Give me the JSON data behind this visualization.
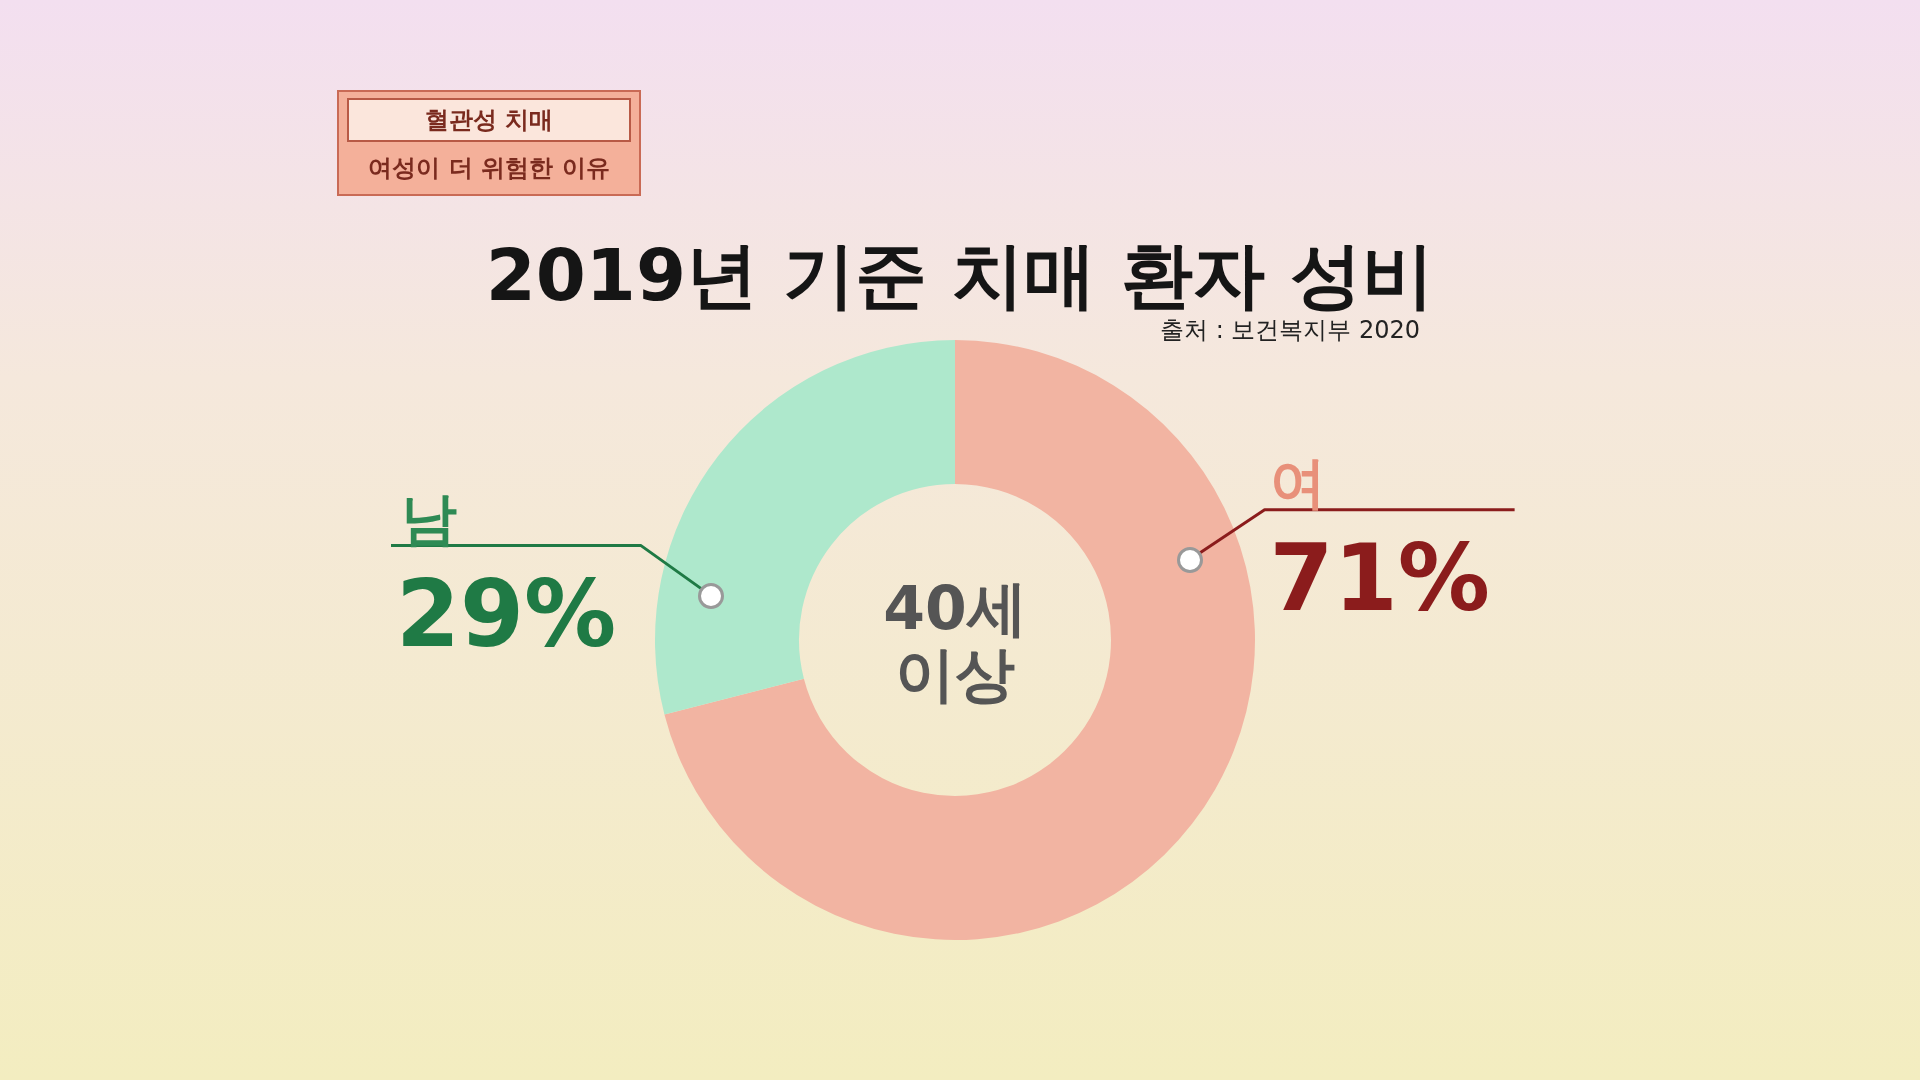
{
  "chart_data": {
    "type": "donut",
    "title": "2019년 기준 치매 환자 성비",
    "categories": [
      "여",
      "남"
    ],
    "values": [
      71,
      29
    ],
    "colors": [
      "#f2b4a2",
      "#aee8cc"
    ],
    "value_labels": [
      "71%",
      "29%"
    ],
    "legend": false,
    "annotations": [
      "출처 : 보건복지부 2020",
      "40세 이상",
      "혈관성 치매",
      "여성이 더 위험한 이유"
    ]
  }
}
